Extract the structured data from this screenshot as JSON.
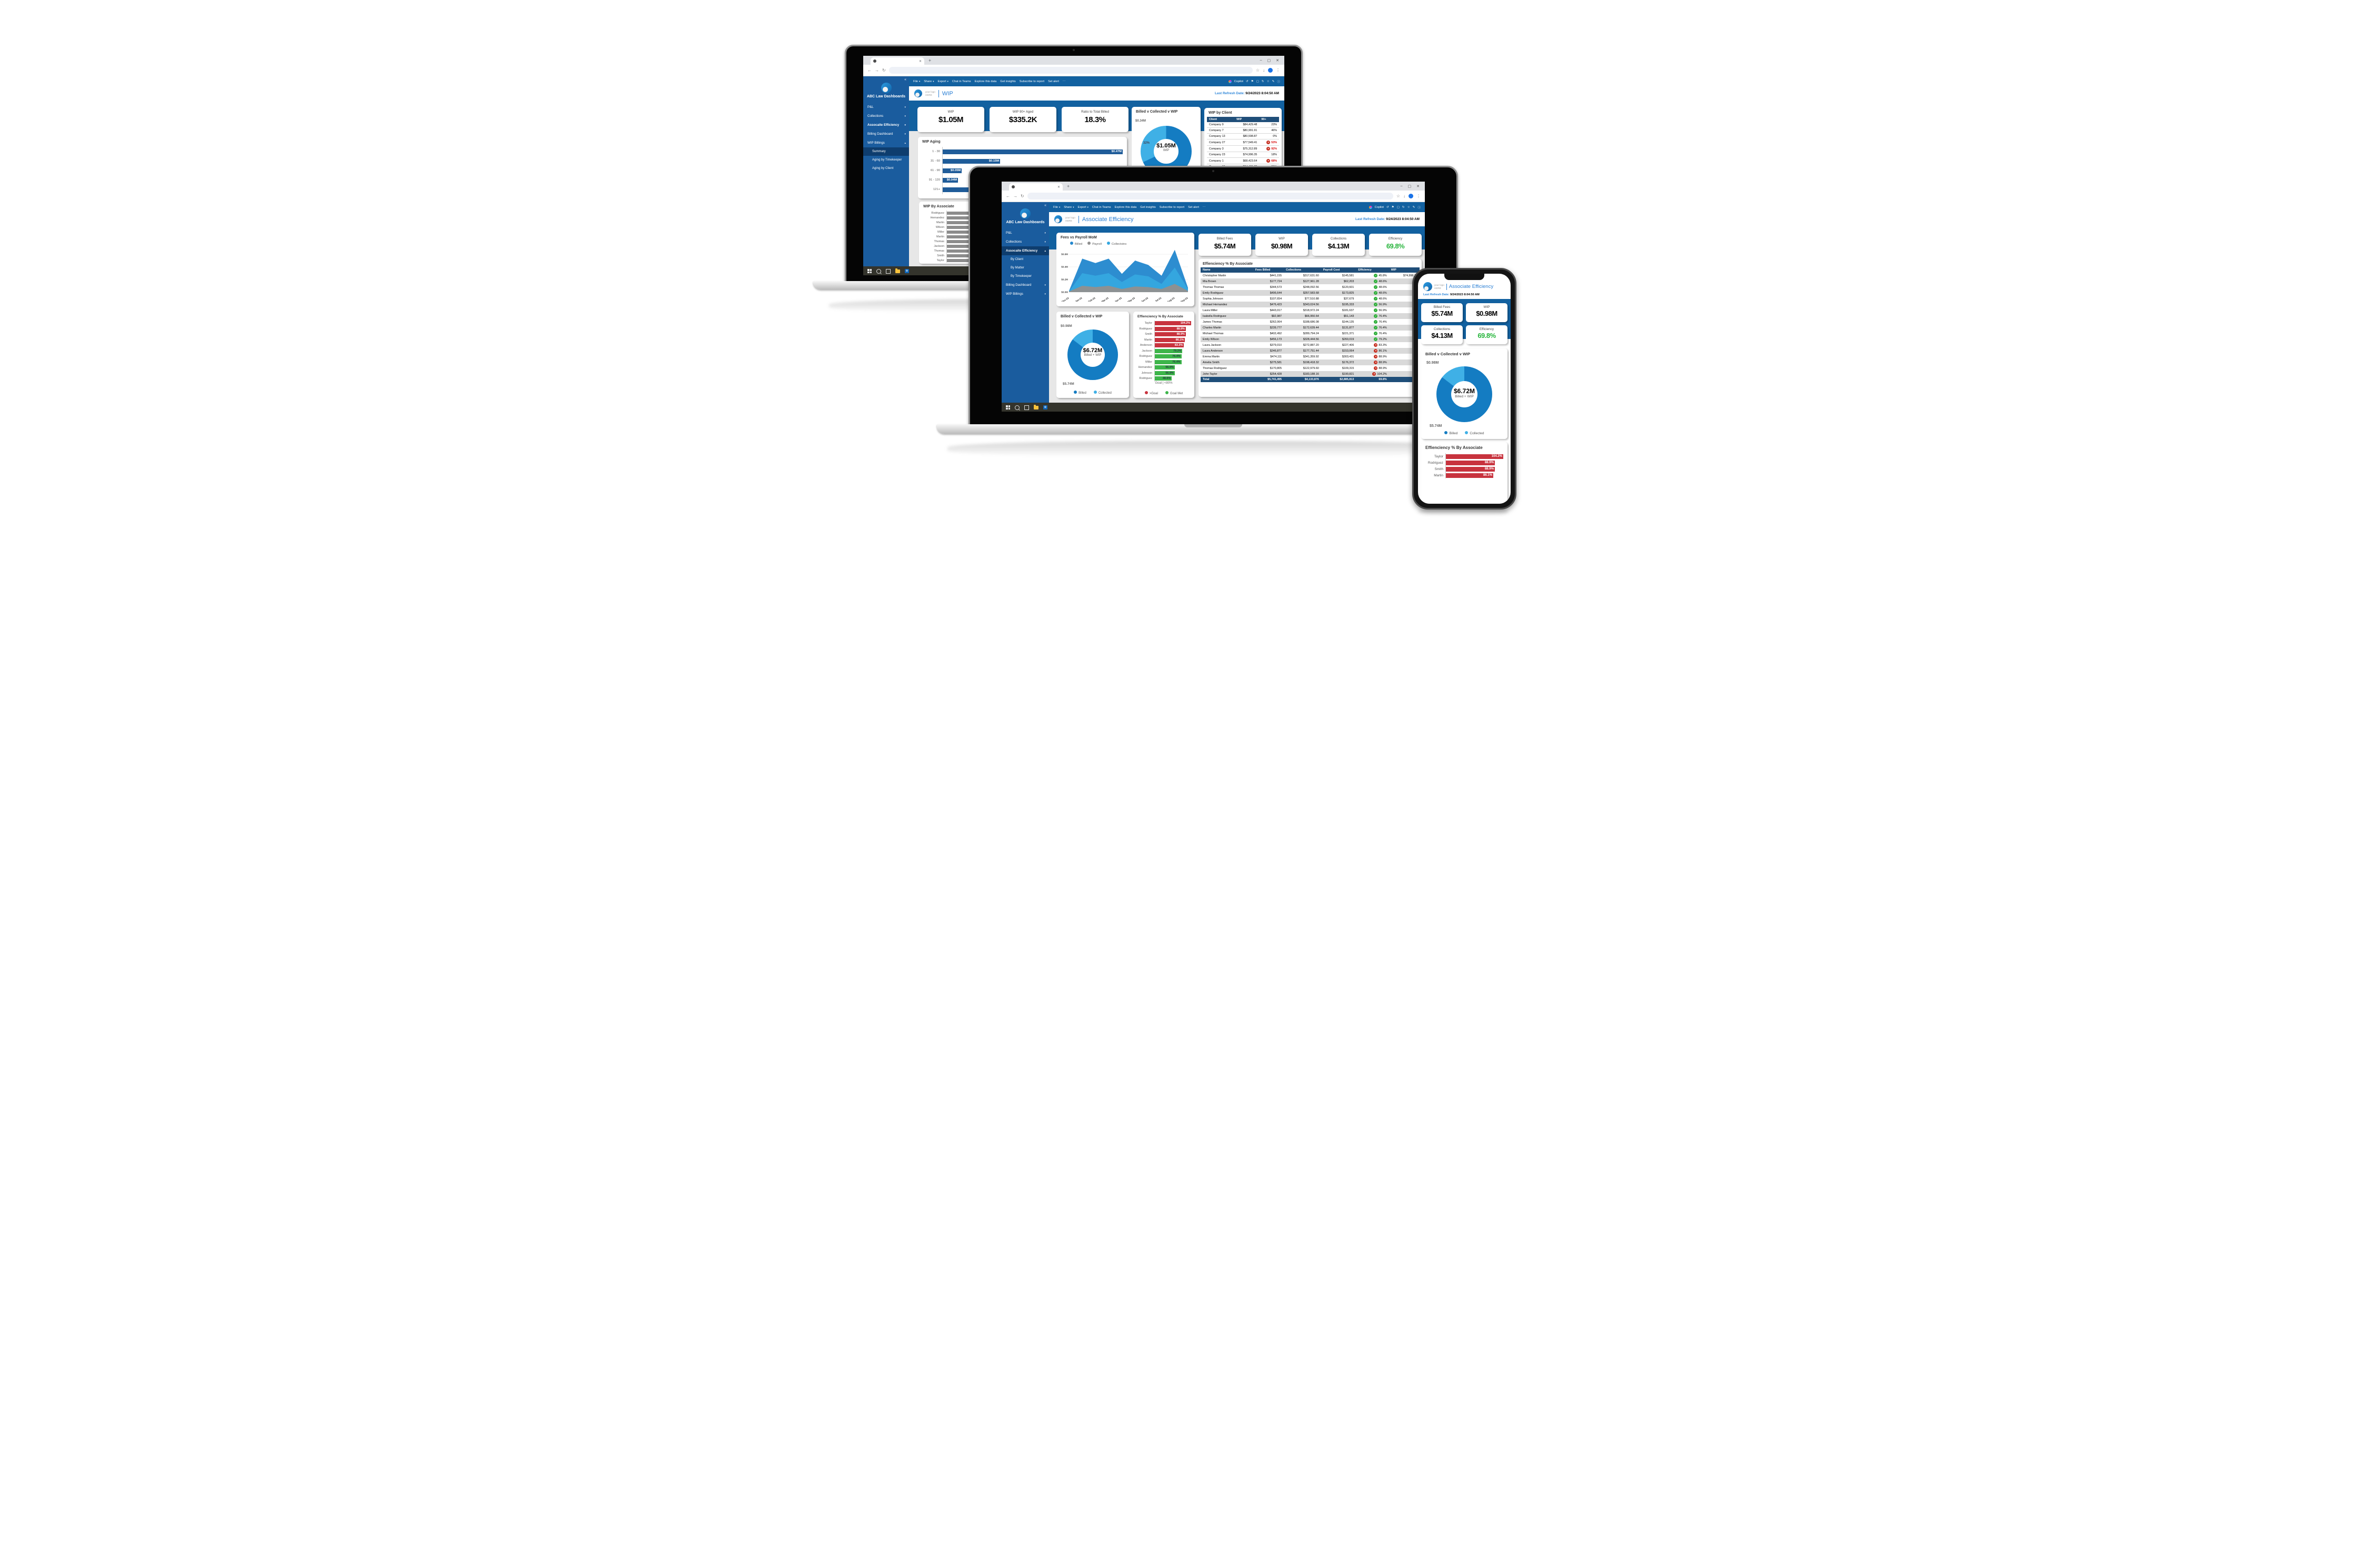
{
  "glyphs": {
    "chev_down": "▾",
    "chev_up": "▴",
    "collapse": "«",
    "close": "✕",
    "minimize": "–",
    "maximize": "▢",
    "new_tab": "+",
    "back": "←",
    "forward": "→",
    "reload": "↻",
    "star": "☆",
    "download": "↓",
    "kebab": "⋮",
    "more": "⋯",
    "pin": "⚑",
    "pencil": "✎",
    "info": "ⓘ",
    "undo": "↺",
    "check": "✓",
    "cross": "✕",
    "o_letter": "o"
  },
  "colors": {
    "accent_blue": "#1261A0",
    "sidebar_blue": "#1A5C9E",
    "navy": "#1F4E79",
    "billed": "#147CC2",
    "collected": "#3FB0E6",
    "payroll": "#8C8C8C",
    "green": "#2EAE39",
    "red": "#C42B1C",
    "bar_red": "#C8333E",
    "bar_green": "#3DB54A",
    "eff_green": "#27B53C",
    "title_blue": "#2A7FD4"
  },
  "powerbi": {
    "toolbar_items": [
      {
        "label": "File",
        "chev": true
      },
      {
        "label": "Share",
        "chev": true
      },
      {
        "label": "Export",
        "chev": true
      },
      {
        "label": "Chat in Teams"
      },
      {
        "label": "Explore this data"
      },
      {
        "label": "Get insights"
      },
      {
        "label": "Subscribe to report"
      },
      {
        "label": "Set alert"
      }
    ],
    "copilot_label": "Copilot",
    "logo_top": "your logo",
    "logo_bottom": "HERE",
    "brand": "ABC Law Dashboards",
    "refresh_label": "Last Refresh Date:",
    "refresh_value": "9/24/2023 8:04:50 AM"
  },
  "back_laptop": {
    "page_title": "WIP",
    "menu": [
      {
        "label": "P&L",
        "chev": "down"
      },
      {
        "label": "Collections",
        "chev": "down"
      },
      {
        "label": "Assocaite Efficiency",
        "chev": "down",
        "bold": true
      },
      {
        "label": "Billing Dashboard",
        "chev": "down"
      },
      {
        "label": "WIP Billings",
        "chev": "up"
      },
      {
        "label": "Summary",
        "sub": true,
        "selected": true
      },
      {
        "label": "Aging by Timekeeper",
        "sub": true
      },
      {
        "label": "Aging by Client",
        "sub": true
      }
    ],
    "kpis": [
      {
        "label": "WIP",
        "value": "$1.05M"
      },
      {
        "label": "WIP 90+ Aged",
        "value": "$335.2K"
      },
      {
        "label": "Ratio to Total Billed",
        "value": "18.3%"
      }
    ],
    "donut": {
      "title": "Billed v Collected v WIP",
      "callout": "$0.34M",
      "pct_small": "32%",
      "pct_big": "68%",
      "center_value": "$1.05M",
      "center_label": "WIP",
      "dark_pct": 68
    }
  },
  "front_laptop": {
    "page_title": "Associate Efficiency",
    "menu": [
      {
        "label": "P&L",
        "chev": "down"
      },
      {
        "label": "Collections",
        "chev": "down"
      },
      {
        "label": "Assocaite Efficiency",
        "chev": "up",
        "bold": true,
        "selected": true
      },
      {
        "label": "By Client",
        "sub": true
      },
      {
        "label": "By Matter",
        "sub": true
      },
      {
        "label": "By Timekeeper",
        "sub": true
      },
      {
        "label": "Billing Dashboard",
        "chev": "down"
      },
      {
        "label": "WIP Billings",
        "chev": "down"
      }
    ],
    "kpis": [
      {
        "label": "Billed Fees",
        "value": "$5.74M"
      },
      {
        "label": "WIP",
        "value": "$0.98M"
      },
      {
        "label": "Collections",
        "value": "$4.13M"
      },
      {
        "label": "Efficiency",
        "value": "69.8%",
        "green": true
      }
    ],
    "donut": {
      "title": "Billed v Collected v WIP",
      "callout_top": "$0.98M",
      "callout_bottom": "$5.74M",
      "center_value": "$6.72M",
      "center_label": "Billed + WIP",
      "legend": [
        "Billed",
        "Collected"
      ],
      "dark_pct": 85.4
    }
  },
  "phone": {
    "page_title": "Associate Efficiency",
    "donut": {
      "title": "Billed v Collected v WIP",
      "callout_top": "$0.98M",
      "callout_bottom": "$5.74M",
      "center_value": "$6.72M",
      "center_label": "Billed + WIP",
      "legend": [
        "Billed",
        "Collected"
      ],
      "dark_pct": 85.4
    },
    "effbars_title": "Effienciency % By Associate"
  },
  "chart_data": [
    {
      "id": "wip_aging",
      "type": "bar",
      "title": "WIP Aging",
      "categories": [
        "1 - 30",
        "31 - 60",
        "61 - 90",
        "91 - 120",
        "121+"
      ],
      "values": [
        0.47,
        0.15,
        0.05,
        0.04,
        0.36
      ],
      "labels": [
        "$0.47M",
        "$0.15M",
        "$0.05M",
        "$0.04M",
        "$0.36M"
      ],
      "xlim": [
        0,
        0.47
      ],
      "ylabel": "days aged",
      "color": "#1F5C99"
    },
    {
      "id": "wip_by_client",
      "type": "table",
      "title": "WIP by Client",
      "columns": [
        "Client",
        "WIP",
        "90+"
      ],
      "rows": [
        {
          "client": "Company 9",
          "wip": "$84,429.48",
          "pct": "23%",
          "alert": false
        },
        {
          "client": "Company 7",
          "wip": "$80,991.91",
          "pct": "46%",
          "alert": false
        },
        {
          "client": "Company 13",
          "wip": "$80,598.87",
          "pct": "0%",
          "alert": false
        },
        {
          "client": "Company 27",
          "wip": "$77,549.41",
          "pct": "53%",
          "alert": true
        },
        {
          "client": "Company 3",
          "wip": "$75,312.89",
          "pct": "92%",
          "alert": true
        },
        {
          "client": "Company 23",
          "wip": "$74,996.35",
          "pct": "18%",
          "alert": false
        },
        {
          "client": "Company 1",
          "wip": "$68,423.64",
          "pct": "68%",
          "alert": true
        },
        {
          "client": "Company 15",
          "wip": "$64,431.70",
          "pct": "31%",
          "alert": false
        },
        {
          "client": "Company 2",
          "wip": "$58,577.41",
          "pct": "28%",
          "alert": false
        },
        {
          "client": "",
          "wip": "",
          "pct": "46%",
          "alert": false
        }
      ]
    },
    {
      "id": "billed_collected_wip_back",
      "type": "pie",
      "title": "Billed v Collected v WIP",
      "slices": [
        {
          "name": "Billed",
          "pct": 68
        },
        {
          "name": "Collected",
          "pct": 32,
          "amount": "$0.34M"
        }
      ],
      "center_value": "$1.05M",
      "center_label": "WIP"
    },
    {
      "id": "wip_by_associate",
      "type": "bar",
      "title": "WIP By Associate",
      "categories": [
        "Rodriguez",
        "Hernandez",
        "Martin",
        "Wilson",
        "Miller",
        "Martin",
        "Thomas",
        "Jackson",
        "Thomas",
        "Smith",
        "Taylor"
      ],
      "values": [
        1,
        1,
        1,
        1,
        1,
        1,
        1,
        1,
        1,
        1,
        1
      ],
      "note": "bar lengths and value labels hidden behind foreground laptop",
      "color": "#8C8C8C"
    },
    {
      "id": "fees_vs_payroll",
      "type": "area",
      "title": "Fees vs Payroll MoM",
      "x": [
        "Dec-22",
        "Jan-23",
        "Feb-23",
        "Mar-23",
        "Apr-23",
        "May-23",
        "Jun-23",
        "Jul-23",
        "Aug-23",
        "Sep-23"
      ],
      "series": [
        {
          "name": "Billed",
          "color": "#2488CE",
          "values": [
            0.02,
            0.53,
            0.46,
            0.53,
            0.29,
            0.5,
            0.43,
            0.26,
            0.67,
            0.07
          ]
        },
        {
          "name": "Collectoins",
          "color": "#35A7E0",
          "values": [
            0.01,
            0.3,
            0.26,
            0.3,
            0.16,
            0.28,
            0.25,
            0.13,
            0.39,
            0.05
          ]
        },
        {
          "name": "Payroll",
          "color": "#909090",
          "values": [
            0.01,
            0.1,
            0.08,
            0.1,
            0.05,
            0.09,
            0.08,
            0.05,
            0.13,
            0.02
          ]
        }
      ],
      "legend_order": [
        "Billed",
        "Payroll",
        "Collectoins"
      ],
      "ylim": [
        0,
        0.7
      ],
      "yticks": [
        0,
        0.2,
        0.4,
        0.6
      ],
      "ytick_labels": [
        "$0.0M",
        "$0.2M",
        "$0.4M",
        "$0.6M"
      ],
      "grid": true,
      "legend_position": "top"
    },
    {
      "id": "efficiency_table",
      "type": "table",
      "title": "Effienciency % By Associate",
      "columns": [
        "Name",
        "Fees Billed",
        "Collections",
        "Payroll Cost",
        "Efficiency",
        "WIP"
      ],
      "rows": [
        {
          "name": "Christopher Martin",
          "fees": "$441,155",
          "coll": "$317,631.60",
          "payroll": "$145,581",
          "eff": "45.8%",
          "ok": true,
          "wip": "$74,996.35"
        },
        {
          "name": "Mia Brown",
          "fees": "$177,724",
          "coll": "$127,961.28",
          "payroll": "$62,203",
          "eff": "48.6%",
          "ok": true,
          "wip": ""
        },
        {
          "name": "Thomas Thomas",
          "fees": "$344,573",
          "coll": "$248,092.56",
          "payroll": "$120,601",
          "eff": "48.6%",
          "ok": true,
          "wip": ""
        },
        {
          "name": "Emily Rodriguez",
          "fees": "$496,644",
          "coll": "$357,583.68",
          "payroll": "$173,825",
          "eff": "48.6%",
          "ok": true,
          "wip": ""
        },
        {
          "name": "Sophia Johnson",
          "fees": "$107,654",
          "coll": "$77,510.88",
          "payroll": "$37,679",
          "eff": "48.6%",
          "ok": true,
          "wip": ""
        },
        {
          "name": "Michael Hernandez",
          "fees": "$476,423",
          "coll": "$343,024.56",
          "payroll": "$195,333",
          "eff": "56.9%",
          "ok": true,
          "wip": ""
        },
        {
          "name": "Laura Miller",
          "fees": "$443,017",
          "coll": "$318,972.24",
          "payroll": "$181,637",
          "eff": "56.9%",
          "ok": true,
          "wip": ""
        },
        {
          "name": "Isabella Rodriguez",
          "fees": "$92,987",
          "coll": "$66,950.64",
          "payroll": "$51,143",
          "eff": "76.4%",
          "ok": true,
          "wip": ""
        },
        {
          "name": "James Thomas",
          "fees": "$262,064",
          "coll": "$188,686.08",
          "payroll": "$144,135",
          "eff": "76.4%",
          "ok": true,
          "wip": ""
        },
        {
          "name": "Charles Martin",
          "fees": "$239,777",
          "coll": "$172,639.44",
          "payroll": "$131,877",
          "eff": "76.4%",
          "ok": true,
          "wip": ""
        },
        {
          "name": "Michael Thomas",
          "fees": "$402,492",
          "coll": "$289,794.24",
          "payroll": "$221,371",
          "eff": "76.4%",
          "ok": true,
          "wip": ""
        },
        {
          "name": "Emily Wilson",
          "fees": "$456,173",
          "coll": "$328,444.56",
          "payroll": "$260,019",
          "eff": "79.2%",
          "ok": true,
          "wip": ""
        },
        {
          "name": "Laura Jackson",
          "fees": "$379,010",
          "coll": "$272,887.20",
          "payroll": "$227,406",
          "eff": "83.3%",
          "ok": false,
          "wip": ""
        },
        {
          "name": "Laura Anderson",
          "fees": "$246,877",
          "coll": "$177,751.44",
          "payroll": "$153,064",
          "eff": "86.1%",
          "ok": false,
          "wip": ""
        },
        {
          "name": "Emma Martin",
          "fees": "$474,111",
          "coll": "$341,359.92",
          "payroll": "$303,431",
          "eff": "88.9%",
          "ok": false,
          "wip": ""
        },
        {
          "name": "Amelia Smith",
          "fees": "$275,581",
          "coll": "$198,418.32",
          "payroll": "$176,372",
          "eff": "88.9%",
          "ok": false,
          "wip": ""
        },
        {
          "name": "Thomas Rodriguez",
          "fees": "$170,805",
          "coll": "$122,979.60",
          "payroll": "$109,315",
          "eff": "88.9%",
          "ok": false,
          "wip": ""
        },
        {
          "name": "John Taylor",
          "fees": "$254,428",
          "coll": "$183,188.16",
          "payroll": "$190,821",
          "eff": "104.2%",
          "ok": false,
          "wip": ""
        }
      ],
      "total": {
        "name": "Total",
        "fees": "$5,741,495",
        "coll": "$4,133,876",
        "payroll": "$2,885,813",
        "eff": "69.8%",
        "wip": ""
      }
    },
    {
      "id": "billed_collected_wip_front",
      "type": "pie",
      "title": "Billed v Collected v WIP",
      "slices": [
        {
          "name": "Billed",
          "amount": "$5.74M",
          "pct": 85.4
        },
        {
          "name": "Collected",
          "amount": "$0.98M",
          "pct": 14.6
        }
      ],
      "center_value": "$6.72M",
      "center_label": "Billed + WIP",
      "legend": [
        "Billed",
        "Collected"
      ]
    },
    {
      "id": "efficiency_by_associate",
      "type": "bar",
      "title": "Effienciency % By Associate",
      "categories": [
        "Taylor",
        "Rodriguez",
        "Smith",
        "Martin",
        "Anderson",
        "Jackson",
        "Rodriguez",
        "Miller",
        "Hernandez",
        "Johnson",
        "Rodriguez"
      ],
      "values": [
        104.2,
        88.9,
        88.9,
        86.1,
        83.3,
        79.2,
        76.4,
        76.4,
        56.9,
        56.9,
        48.6
      ],
      "labels": [
        "104.2%",
        "88.9%",
        "88.9%",
        "86.1%",
        "83.3%",
        "79.2%",
        "76.4%",
        "76.4%",
        "56.9%",
        "56.9%",
        "48.6%"
      ],
      "flags": [
        "red",
        "red",
        "red",
        "red",
        "red",
        "green",
        "green",
        "green",
        "green",
        "green",
        "green"
      ],
      "goal_note": "Goal | <80%",
      "legend": [
        {
          "label": ">Goal",
          "color": "#C8333E"
        },
        {
          "label": "Goal Met",
          "color": "#3DB54A"
        }
      ],
      "xlim": [
        0,
        110
      ]
    },
    {
      "id": "phone_efficiency_bars",
      "type": "bar",
      "title": "Effienciency % By Associate",
      "categories": [
        "Taylor",
        "Rodriguez",
        "Smith",
        "Martin"
      ],
      "values": [
        104.2,
        88.9,
        88.9,
        86.1
      ],
      "labels": [
        "104.2%",
        "88.9%",
        "88.9%",
        "86.1%"
      ],
      "flags": [
        "red",
        "red",
        "red",
        "red"
      ],
      "xlim": [
        0,
        110
      ]
    }
  ]
}
